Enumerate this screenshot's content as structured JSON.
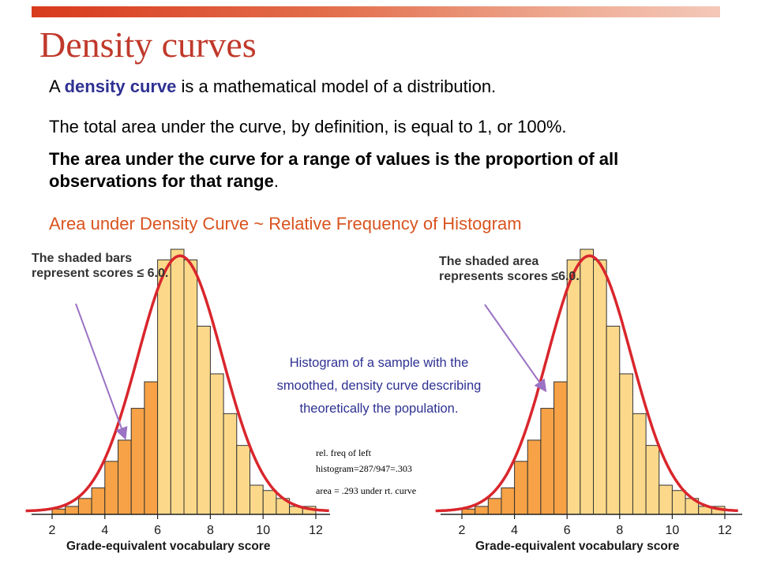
{
  "slide": {
    "title": "Density curves",
    "p1": {
      "pre": "A ",
      "keyword": "density curve",
      "post": " is a mathematical model of a distribution."
    },
    "p2": "The total area under the curve, by definition, is equal to 1, or 100%.",
    "p3": {
      "bold": "The area under the curve for a range of values is the proportion of all observations for that range",
      "tail": "."
    },
    "p4": "Area under Density Curve  ~ Relative Frequency of Histogram",
    "callout_left": "The shaded bars represent scores ≤ 6.0.",
    "callout_right": "The shaded area represents scores ≤6.0.",
    "middle_note": "Histogram of a sample with the smoothed, density curve describing theoretically the population.",
    "rel_freq_note": "rel. freq of left histogram=287/947=.303",
    "area_note": "area = .293 under rt. curve"
  },
  "colors": {
    "title": "#c0392b",
    "keyword": "#2e3192",
    "highlight_text": "#d9531e",
    "shaded_bar": "#f7a246",
    "unshaded_bar": "#fcd98a",
    "curve": "#d9262c",
    "arrow": "#9b72c4"
  },
  "chart_data": [
    {
      "type": "bar",
      "xlabel": "Grade-equivalent vocabulary score",
      "x_ticks": [
        "2",
        "4",
        "6",
        "8",
        "10",
        "12"
      ],
      "xlim": [
        1,
        12.5
      ],
      "bin_width": 0.5,
      "bin_starts": [
        2.0,
        2.5,
        3.0,
        3.5,
        4.0,
        4.5,
        5.0,
        5.5,
        6.0,
        6.5,
        7.0,
        7.5,
        8.0,
        8.5,
        9.0,
        9.5,
        10.0,
        10.5,
        11.0,
        11.5
      ],
      "relative_heights": [
        0.02,
        0.03,
        0.06,
        0.1,
        0.2,
        0.28,
        0.4,
        0.5,
        0.96,
        1.0,
        0.96,
        0.71,
        0.53,
        0.38,
        0.26,
        0.11,
        0.09,
        0.06,
        0.03,
        0.03
      ],
      "shaded_threshold": 6.0,
      "curve": {
        "type": "normal",
        "mean": 6.85,
        "sd": 1.6
      }
    },
    {
      "type": "area",
      "xlabel": "Grade-equivalent vocabulary score",
      "x_ticks": [
        "2",
        "4",
        "6",
        "8",
        "10",
        "12"
      ],
      "xlim": [
        1,
        12.5
      ],
      "bin_width": 0.5,
      "bin_starts": [
        2.0,
        2.5,
        3.0,
        3.5,
        4.0,
        4.5,
        5.0,
        5.5,
        6.0,
        6.5,
        7.0,
        7.5,
        8.0,
        8.5,
        9.0,
        9.5,
        10.0,
        10.5,
        11.0,
        11.5
      ],
      "relative_heights": [
        0.02,
        0.03,
        0.06,
        0.1,
        0.2,
        0.28,
        0.4,
        0.5,
        0.96,
        1.0,
        0.96,
        0.71,
        0.53,
        0.38,
        0.26,
        0.11,
        0.09,
        0.06,
        0.03,
        0.03
      ],
      "shaded_threshold": 6.0,
      "curve": {
        "type": "normal",
        "mean": 6.85,
        "sd": 1.6
      }
    }
  ]
}
